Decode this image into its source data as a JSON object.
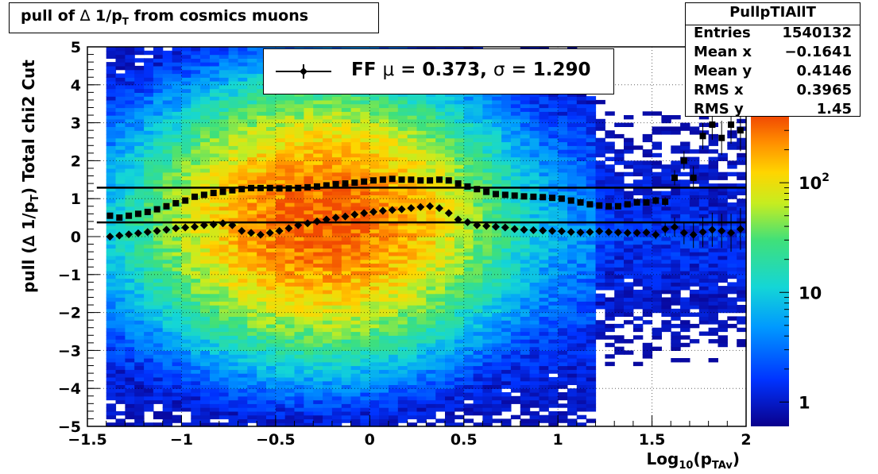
{
  "title": {
    "prefix": "pull of ",
    "symbol": "∆",
    "mid": " 1/p",
    "sub": "T",
    "suffix": "  from cosmics muons"
  },
  "stats": {
    "name": "PullpTIAllT",
    "rows": [
      {
        "key": "Entries",
        "value": "1540132"
      },
      {
        "key": "Mean x",
        "value": "−0.1641"
      },
      {
        "key": "Mean y",
        "value": "0.4146"
      },
      {
        "key": "RMS x",
        "value": "0.3965"
      },
      {
        "key": "RMS y",
        "value": "1.45"
      }
    ]
  },
  "legend": {
    "label": "FF",
    "mu_symbol": "μ",
    "mu_value": "0.373",
    "sigma_symbol": "σ",
    "sigma_value": "1.290"
  },
  "axes": {
    "ylabel": {
      "main": "pull (∆ 1/p",
      "sub": "T",
      "close": ")",
      "extra": "Total chi2 Cut"
    },
    "xlabel": {
      "main": "Log",
      "sub1": "10",
      "open": "(p",
      "sub2": "TAv",
      "close": ")"
    }
  },
  "colors": {
    "background": "#ffffff",
    "frame": "#000000",
    "markers": "#000000",
    "palette_low": "#0a008c",
    "palette_mid": "#14d6d6",
    "palette_high": "#f14a02"
  },
  "chart_data": {
    "type": "heatmap",
    "title": "pull of ∆ 1/p_T from cosmics muons",
    "xlabel": "Log10(p_TAv)",
    "ylabel": "pull (∆ 1/p_T)   Total chi2 Cut",
    "xlim": [
      -1.5,
      2.0
    ],
    "ylim": [
      -5,
      5
    ],
    "x_ticks": [
      "−1.5",
      "−1",
      "−0.5",
      "0",
      "0.5",
      "1",
      "1.5",
      "2"
    ],
    "y_ticks": [
      "5",
      "4",
      "3",
      "2",
      "1",
      "0",
      "−1",
      "−2",
      "−3",
      "−4",
      "−5"
    ],
    "grid": true,
    "z_scale": "log",
    "z_ticks": [
      "1",
      "10",
      "10^2"
    ],
    "z_range": [
      0.6,
      400
    ],
    "density_model": {
      "x_center": -0.25,
      "x_sigma": 0.4,
      "y_center": 0.45,
      "y_sigma": 1.45,
      "peak": 350
    },
    "fit_lines": [
      {
        "name": "mean",
        "y": 0.373
      },
      {
        "name": "sigma",
        "y": 1.29
      }
    ],
    "series": [
      {
        "name": "mean",
        "marker": "diamond",
        "x": [
          -1.38,
          -1.33,
          -1.28,
          -1.23,
          -1.18,
          -1.13,
          -1.08,
          -1.03,
          -0.98,
          -0.93,
          -0.88,
          -0.83,
          -0.78,
          -0.73,
          -0.68,
          -0.63,
          -0.58,
          -0.53,
          -0.48,
          -0.43,
          -0.38,
          -0.33,
          -0.28,
          -0.23,
          -0.18,
          -0.13,
          -0.08,
          -0.03,
          0.02,
          0.07,
          0.12,
          0.17,
          0.22,
          0.27,
          0.32,
          0.37,
          0.42,
          0.47,
          0.52,
          0.57,
          0.62,
          0.67,
          0.72,
          0.77,
          0.82,
          0.87,
          0.92,
          0.97,
          1.02,
          1.07,
          1.12,
          1.17,
          1.22,
          1.27,
          1.32,
          1.37,
          1.42,
          1.47,
          1.52,
          1.57,
          1.62,
          1.67,
          1.72,
          1.77,
          1.82,
          1.87,
          1.92,
          1.97
        ],
        "y": [
          0.0,
          0.03,
          0.06,
          0.09,
          0.12,
          0.15,
          0.18,
          0.22,
          0.24,
          0.26,
          0.3,
          0.32,
          0.35,
          0.3,
          0.15,
          0.1,
          0.05,
          0.1,
          0.15,
          0.22,
          0.3,
          0.35,
          0.4,
          0.45,
          0.5,
          0.53,
          0.58,
          0.62,
          0.65,
          0.68,
          0.7,
          0.72,
          0.75,
          0.78,
          0.8,
          0.75,
          0.62,
          0.45,
          0.38,
          0.3,
          0.28,
          0.26,
          0.24,
          0.2,
          0.18,
          0.17,
          0.16,
          0.15,
          0.14,
          0.12,
          0.11,
          0.12,
          0.14,
          0.12,
          0.11,
          0.1,
          0.1,
          0.11,
          0.05,
          0.2,
          0.25,
          0.1,
          0.05,
          0.12,
          0.18,
          0.15,
          0.1,
          0.2
        ],
        "err": [
          0.02,
          0.02,
          0.02,
          0.02,
          0.02,
          0.02,
          0.02,
          0.02,
          0.02,
          0.02,
          0.02,
          0.02,
          0.02,
          0.02,
          0.02,
          0.02,
          0.02,
          0.02,
          0.02,
          0.02,
          0.02,
          0.02,
          0.02,
          0.02,
          0.02,
          0.02,
          0.02,
          0.02,
          0.02,
          0.02,
          0.02,
          0.02,
          0.02,
          0.02,
          0.02,
          0.02,
          0.02,
          0.02,
          0.02,
          0.02,
          0.02,
          0.02,
          0.02,
          0.02,
          0.02,
          0.02,
          0.02,
          0.02,
          0.03,
          0.03,
          0.03,
          0.03,
          0.04,
          0.04,
          0.05,
          0.06,
          0.07,
          0.08,
          0.12,
          0.18,
          0.25,
          0.3,
          0.35,
          0.4,
          0.45,
          0.45,
          0.5,
          0.55
        ]
      },
      {
        "name": "sigma",
        "marker": "square",
        "x": [
          -1.38,
          -1.33,
          -1.28,
          -1.23,
          -1.18,
          -1.13,
          -1.08,
          -1.03,
          -0.98,
          -0.93,
          -0.88,
          -0.83,
          -0.78,
          -0.73,
          -0.68,
          -0.63,
          -0.58,
          -0.53,
          -0.48,
          -0.43,
          -0.38,
          -0.33,
          -0.28,
          -0.23,
          -0.18,
          -0.13,
          -0.08,
          -0.03,
          0.02,
          0.07,
          0.12,
          0.17,
          0.22,
          0.27,
          0.32,
          0.37,
          0.42,
          0.47,
          0.52,
          0.57,
          0.62,
          0.67,
          0.72,
          0.77,
          0.82,
          0.87,
          0.92,
          0.97,
          1.02,
          1.07,
          1.12,
          1.17,
          1.22,
          1.27,
          1.32,
          1.37,
          1.42,
          1.47,
          1.52,
          1.57,
          1.62,
          1.67,
          1.72,
          1.77,
          1.82,
          1.87,
          1.92,
          1.97
        ],
        "y": [
          0.55,
          0.5,
          0.55,
          0.6,
          0.65,
          0.72,
          0.8,
          0.88,
          0.95,
          1.05,
          1.1,
          1.15,
          1.18,
          1.22,
          1.25,
          1.28,
          1.28,
          1.28,
          1.27,
          1.27,
          1.28,
          1.3,
          1.32,
          1.35,
          1.38,
          1.4,
          1.42,
          1.45,
          1.48,
          1.5,
          1.52,
          1.5,
          1.5,
          1.48,
          1.48,
          1.5,
          1.48,
          1.4,
          1.32,
          1.25,
          1.18,
          1.12,
          1.1,
          1.08,
          1.06,
          1.05,
          1.04,
          1.02,
          1.0,
          0.95,
          0.9,
          0.85,
          0.82,
          0.8,
          0.8,
          0.85,
          0.9,
          0.9,
          0.95,
          0.92,
          1.55,
          2.0,
          1.55,
          2.65,
          2.95,
          2.6,
          2.95,
          2.8
        ],
        "err": [
          0.02,
          0.02,
          0.02,
          0.02,
          0.02,
          0.02,
          0.02,
          0.02,
          0.02,
          0.02,
          0.02,
          0.02,
          0.02,
          0.02,
          0.02,
          0.02,
          0.02,
          0.02,
          0.02,
          0.02,
          0.02,
          0.02,
          0.02,
          0.02,
          0.02,
          0.02,
          0.02,
          0.02,
          0.02,
          0.02,
          0.02,
          0.02,
          0.02,
          0.02,
          0.02,
          0.02,
          0.02,
          0.02,
          0.02,
          0.02,
          0.02,
          0.02,
          0.02,
          0.02,
          0.02,
          0.02,
          0.02,
          0.02,
          0.03,
          0.03,
          0.03,
          0.03,
          0.04,
          0.04,
          0.05,
          0.06,
          0.07,
          0.08,
          0.1,
          0.12,
          0.2,
          0.25,
          0.3,
          0.35,
          0.4,
          0.45,
          0.5,
          0.55
        ]
      }
    ]
  }
}
